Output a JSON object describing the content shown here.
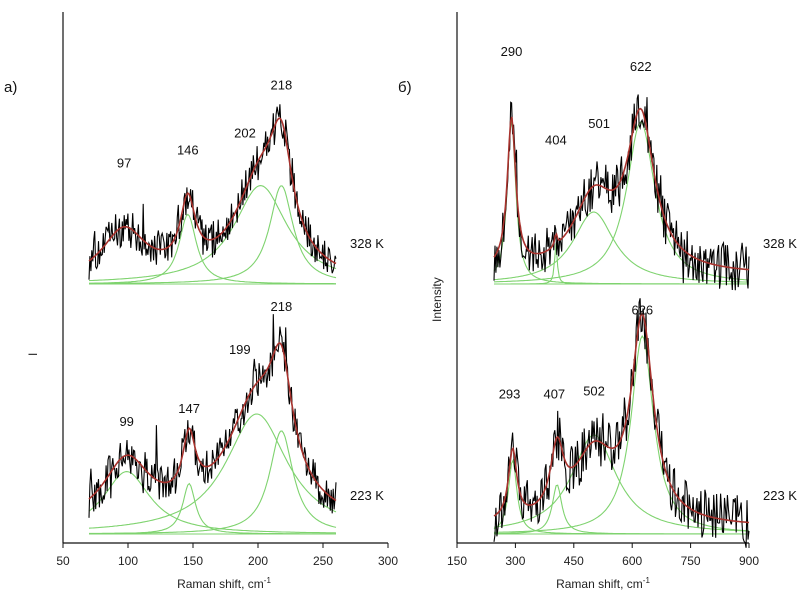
{
  "chart_data": [
    {
      "type": "line",
      "panel_label": "а)",
      "xlabel": "Raman shift, cm",
      "xlabel_sup": "-1",
      "ylabel": "I",
      "xlim": [
        50,
        300
      ],
      "x_ticks": [
        "50",
        "100",
        "150",
        "200",
        "250",
        "300"
      ],
      "spectra": [
        {
          "temperature": "328 K",
          "x_range": [
            70,
            260
          ],
          "envelope": {
            "baseline": 0.0,
            "peaks": [
              {
                "center": 97,
                "amp": 0.42,
                "width": 42
              },
              {
                "center": 146,
                "amp": 0.55,
                "width": 14
              },
              {
                "center": 202,
                "amp": 0.82,
                "width": 48
              },
              {
                "center": 218,
                "amp": 0.78,
                "width": 20
              }
            ]
          },
          "components": [
            {
              "label": "146",
              "center": 146,
              "amp": 0.58,
              "width": 16
            },
            {
              "label": "202",
              "center": 202,
              "amp": 0.82,
              "width": 50
            },
            {
              "label": "218",
              "center": 218,
              "amp": 0.82,
              "width": 22
            }
          ],
          "peak_labels": [
            {
              "text": "97",
              "x": 97,
              "y": 0.97
            },
            {
              "text": "146",
              "x": 146,
              "y": 1.08
            },
            {
              "text": "202",
              "x": 190,
              "y": 1.22
            },
            {
              "text": "218",
              "x": 218,
              "y": 1.62
            }
          ]
        },
        {
          "temperature": "223 K",
          "x_range": [
            70,
            260
          ],
          "envelope": {
            "baseline": 0.05,
            "peaks": [
              {
                "center": 99,
                "amp": 0.52,
                "width": 44
              },
              {
                "center": 147,
                "amp": 0.5,
                "width": 12
              },
              {
                "center": 199,
                "amp": 1.0,
                "width": 56
              },
              {
                "center": 218,
                "amp": 0.82,
                "width": 20
              }
            ]
          },
          "components": [
            {
              "label": "99",
              "center": 99,
              "amp": 0.52,
              "width": 44
            },
            {
              "label": "147",
              "center": 147,
              "amp": 0.42,
              "width": 12
            },
            {
              "label": "199",
              "center": 199,
              "amp": 1.0,
              "width": 58
            },
            {
              "label": "218",
              "center": 218,
              "amp": 0.86,
              "width": 22
            }
          ],
          "peak_labels": [
            {
              "text": "99",
              "x": 99,
              "y": 0.9
            },
            {
              "text": "147",
              "x": 147,
              "y": 1.01
            },
            {
              "text": "199",
              "x": 186,
              "y": 1.5
            },
            {
              "text": "218",
              "x": 218,
              "y": 1.86
            }
          ]
        }
      ]
    },
    {
      "type": "line",
      "panel_label": "б)",
      "xlabel": "Raman shift, cm",
      "xlabel_sup": "-1",
      "ylabel": "Intensity",
      "xlim": [
        150,
        900
      ],
      "x_ticks": [
        "150",
        "300",
        "450",
        "600",
        "750",
        "900"
      ],
      "spectra": [
        {
          "temperature": "328 K",
          "x_range": [
            245,
            900
          ],
          "envelope": {
            "baseline": 0.06,
            "peaks": [
              {
                "center": 290,
                "amp": 1.0,
                "width": 26
              },
              {
                "center": 404,
                "amp": 0.08,
                "width": 8
              },
              {
                "center": 501,
                "amp": 0.48,
                "width": 130
              },
              {
                "center": 622,
                "amp": 1.0,
                "width": 85
              }
            ]
          },
          "components": [
            {
              "label": "290",
              "center": 290,
              "amp": 1.1,
              "width": 26
            },
            {
              "label": "404",
              "center": 404,
              "amp": 0.28,
              "width": 8
            },
            {
              "label": "501",
              "center": 501,
              "amp": 0.48,
              "width": 130
            },
            {
              "label": "622",
              "center": 622,
              "amp": 1.08,
              "width": 88
            }
          ],
          "peak_labels": [
            {
              "text": "290",
              "x": 290,
              "y": 1.52
            },
            {
              "text": "404",
              "x": 404,
              "y": 0.93
            },
            {
              "text": "501",
              "x": 515,
              "y": 1.04
            },
            {
              "text": "622",
              "x": 622,
              "y": 1.42
            }
          ]
        },
        {
          "temperature": "223 K",
          "x_range": [
            245,
            900
          ],
          "envelope": {
            "baseline": 0.04,
            "peaks": [
              {
                "center": 293,
                "amp": 0.42,
                "width": 26
              },
              {
                "center": 407,
                "amp": 0.38,
                "width": 40
              },
              {
                "center": 502,
                "amp": 0.42,
                "width": 130
              },
              {
                "center": 626,
                "amp": 1.2,
                "width": 68
              }
            ]
          },
          "components": [
            {
              "label": "293",
              "center": 293,
              "amp": 0.45,
              "width": 26
            },
            {
              "label": "407",
              "center": 407,
              "amp": 0.3,
              "width": 30
            },
            {
              "label": "502",
              "center": 502,
              "amp": 0.6,
              "width": 140
            },
            {
              "label": "626",
              "center": 626,
              "amp": 1.2,
              "width": 70
            }
          ],
          "peak_labels": [
            {
              "text": "293",
              "x": 285,
              "y": 0.82
            },
            {
              "text": "407",
              "x": 400,
              "y": 0.82
            },
            {
              "text": "502",
              "x": 502,
              "y": 0.84
            },
            {
              "text": "626",
              "x": 626,
              "y": 1.33
            }
          ]
        }
      ]
    }
  ],
  "colors": {
    "raw": "#000000",
    "envelope": "#a8322d",
    "component": "#7fd36f",
    "axis": "#111111"
  }
}
